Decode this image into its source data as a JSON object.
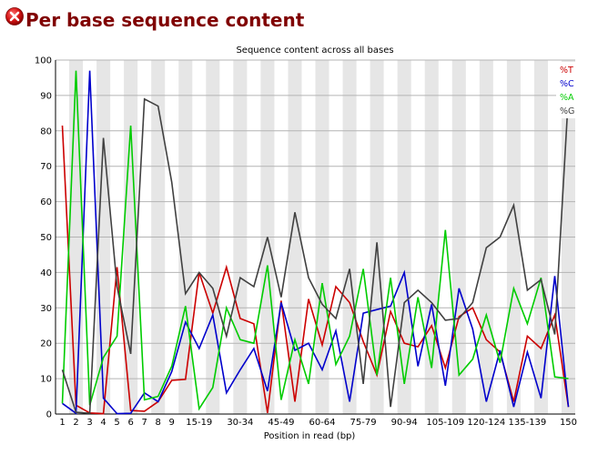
{
  "header": {
    "title": "Per base sequence content",
    "status_icon": "fail-x-icon"
  },
  "chart_data": {
    "type": "line",
    "title": "Sequence content across all bases",
    "xlabel": "Position in read (bp)",
    "ylabel": "",
    "ylim": [
      0,
      100
    ],
    "yticks": [
      0,
      10,
      20,
      30,
      40,
      50,
      60,
      70,
      80,
      90,
      100
    ],
    "grid": true,
    "legend_position": "top-right",
    "categories": [
      "1",
      "2",
      "3",
      "4",
      "5",
      "6",
      "7",
      "8",
      "9",
      "10-14",
      "15-19",
      "20-24",
      "25-29",
      "30-34",
      "35-39",
      "40-44",
      "45-49",
      "50-54",
      "55-59",
      "60-64",
      "65-69",
      "70-74",
      "75-79",
      "80-84",
      "85-89",
      "90-94",
      "95-99",
      "100-104",
      "105-109",
      "110-114",
      "115-119",
      "120-124",
      "125-129",
      "130-134",
      "135-139",
      "140-144",
      "145-149",
      "150"
    ],
    "tick_labels": [
      "1",
      "2",
      "3",
      "4",
      "5",
      "6",
      "7",
      "8",
      "9",
      "15-19",
      "30-34",
      "45-49",
      "60-64",
      "75-79",
      "90-94",
      "105-109",
      "120-124",
      "135-139",
      "150"
    ],
    "series": [
      {
        "name": "%T",
        "color": "#cc0000",
        "values": [
          81.5,
          2.5,
          0.3,
          0.1,
          41.5,
          1.0,
          0.8,
          3.5,
          9.5,
          9.8,
          40.0,
          28.5,
          41.5,
          27.0,
          25.5,
          0.3,
          32.0,
          3.5,
          32.5,
          19.5,
          36.0,
          31.5,
          20.5,
          11.0,
          29.0,
          20.0,
          19.0,
          25.0,
          13.0,
          27.5,
          30.0,
          21.0,
          17.5,
          3.5,
          22.0,
          18.5,
          28.0,
          2.0
        ]
      },
      {
        "name": "%C",
        "color": "#0000cc",
        "values": [
          3.0,
          0.2,
          97.0,
          4.5,
          0.1,
          0.2,
          6.0,
          3.5,
          12.0,
          26.0,
          18.5,
          28.0,
          6.0,
          12.5,
          18.5,
          6.5,
          31.5,
          18.0,
          20.0,
          12.5,
          23.5,
          3.5,
          28.5,
          29.5,
          30.5,
          40.0,
          13.5,
          31.0,
          8.0,
          35.5,
          24.0,
          3.5,
          18.0,
          2.0,
          17.5,
          4.5,
          39.0,
          2.0
        ]
      },
      {
        "name": "%A",
        "color": "#00cc00",
        "values": [
          3.0,
          97.0,
          2.5,
          16.0,
          22.0,
          81.5,
          4.0,
          5.0,
          13.5,
          30.5,
          1.5,
          7.5,
          30.0,
          21.0,
          20.0,
          42.0,
          4.0,
          21.0,
          8.5,
          37.0,
          14.0,
          22.0,
          41.0,
          11.0,
          38.5,
          8.5,
          33.0,
          13.0,
          52.0,
          11.0,
          15.5,
          28.0,
          14.5,
          35.5,
          25.5,
          38.5,
          10.5,
          10.0
        ]
      },
      {
        "name": "%G",
        "color": "#404040",
        "values": [
          12.5,
          0.5,
          0.2,
          78.0,
          36.0,
          17.0,
          89.0,
          87.0,
          65.5,
          34.0,
          40.0,
          35.5,
          22.0,
          38.5,
          36.0,
          50.0,
          33.0,
          57.0,
          38.5,
          31.0,
          27.0,
          41.0,
          8.5,
          48.5,
          2.0,
          31.5,
          35.0,
          31.5,
          26.5,
          27.0,
          31.5,
          47.0,
          50.0,
          59.0,
          35.0,
          38.0,
          22.5,
          90.0
        ]
      }
    ]
  }
}
